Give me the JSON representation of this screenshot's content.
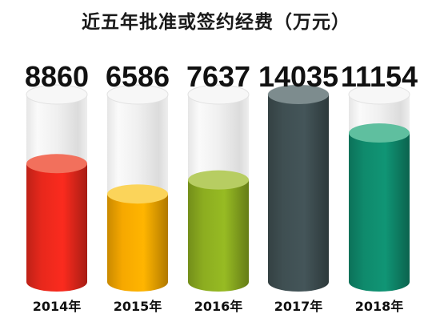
{
  "chart_data": {
    "type": "bar",
    "title": "近五年批准或签约经费（万元）",
    "categories": [
      "2014年",
      "2015年",
      "2016年",
      "2017年",
      "2018年"
    ],
    "values": [
      8860,
      6586,
      7637,
      14035,
      11154
    ],
    "value_labels": [
      "8860",
      "6586",
      "7637",
      "14035",
      "11154"
    ],
    "ylim": [
      0,
      14035
    ],
    "grid": false,
    "legend": "none",
    "series_colors": [
      {
        "body": "#e8281c",
        "top": "#f2705c"
      },
      {
        "body": "#f6a800",
        "top": "#fbd45a"
      },
      {
        "body": "#8cad20",
        "top": "#b7cd62"
      },
      {
        "body": "#3f4f52",
        "top": "#7d8c8e"
      },
      {
        "body": "#0f8a6c",
        "top": "#5fbf9f"
      }
    ]
  }
}
